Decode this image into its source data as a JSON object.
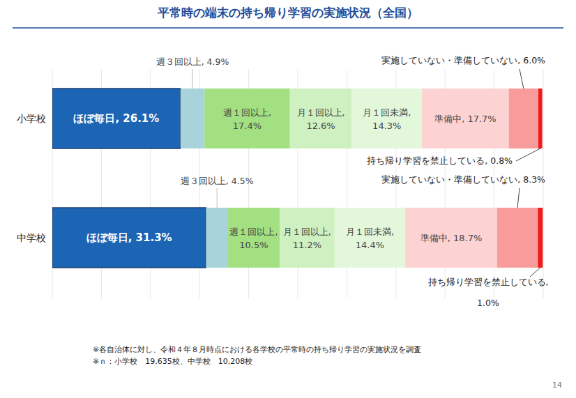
{
  "chart_data": {
    "type": "bar",
    "orientation": "horizontal",
    "stacked": true,
    "title": "平常時の端末の持ち帰り学習の実施状況（全国）",
    "categories": [
      "小学校",
      "中学校"
    ],
    "xlim": [
      0,
      100
    ],
    "xticks": [
      0,
      10,
      20,
      30,
      40,
      50,
      60,
      70,
      80,
      90,
      100
    ],
    "grid": true,
    "tick_labels": "y",
    "data_labels": true,
    "annotations": [
      "※各自治体に対し、令和４年８月時点における各学校の平常時の持ち帰り学習の実施状況を調査",
      "※ｎ：小学校　19,635校、中学校　10,208校",
      "14"
    ],
    "series": [
      {
        "name": "ほぼ毎日",
        "color": "#1c64b4",
        "values": [
          26.1,
          31.3
        ],
        "value_labels": [
          "ほぼ毎日, 26.1%",
          "ほぼ毎日, 31.3%"
        ]
      },
      {
        "name": "週３回以上",
        "color": "#a8d3da",
        "values": [
          4.9,
          4.5
        ],
        "value_labels": [
          "週３回以上, 4.9%",
          "週３回以上, 4.5%"
        ]
      },
      {
        "name": "週１回以上",
        "color": "#a2e082",
        "values": [
          17.4,
          10.5
        ],
        "value_labels": [
          "週１回以上, 17.4%",
          "週１回以上, 10.5%"
        ]
      },
      {
        "name": "月１回以上",
        "color": "#cff0c0",
        "values": [
          12.6,
          11.2
        ],
        "value_labels": [
          "月１回以上, 12.6%",
          "月１回以上, 11.2%"
        ]
      },
      {
        "name": "月１回未満",
        "color": "#e3f8da",
        "values": [
          14.3,
          14.4
        ],
        "value_labels": [
          "月１回未満, 14.3%",
          "月１回未満, 14.4%"
        ]
      },
      {
        "name": "準備中",
        "color": "#fcd2d2",
        "values": [
          17.7,
          18.7
        ],
        "value_labels": [
          "準備中, 17.7%",
          "準備中, 18.7%"
        ]
      },
      {
        "name": "実施していない・準備していない",
        "color": "#f79b9b",
        "values": [
          6.0,
          8.3
        ],
        "value_labels": [
          "実施していない・準備していない, 6.0%",
          "実施していない・準備していない, 8.3%"
        ]
      },
      {
        "name": "持ち帰り学習を禁止している",
        "color": "#ee1c1c",
        "values": [
          0.8,
          1.0
        ],
        "value_labels": [
          "持ち帰り学習を禁止している, 0.8%",
          "持ち帰り学習を禁止している, 1.0%"
        ]
      }
    ]
  }
}
